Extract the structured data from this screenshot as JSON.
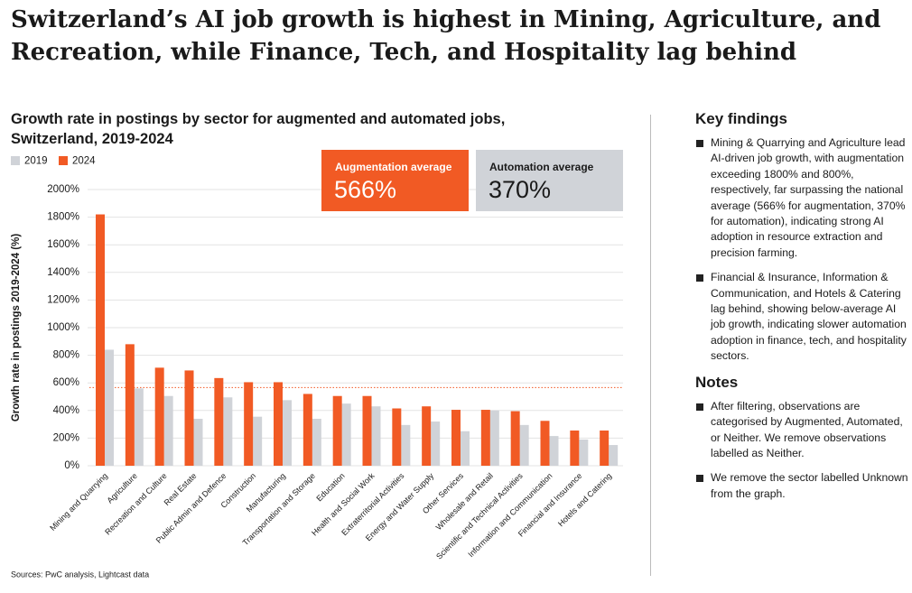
{
  "header": {
    "title": "Switzerland’s AI job growth is highest in Mining, Agriculture, and Recreation, while Finance, Tech, and Hospitality lag behind"
  },
  "chart_data": {
    "type": "bar",
    "title": "Growth rate in postings by sector for augmented and automated jobs, Switzerland, 2019-2024",
    "y_label": "Growth rate in postings 2019-2024 (%)",
    "categories": [
      "Mining and Quarrying",
      "Agriculture",
      "Recreation and Culture",
      "Real Estate",
      "Public Admin and Defence",
      "Construction",
      "Manufacturing",
      "Transportation and Storage",
      "Education",
      "Health and Social Work",
      "Extraterritorial Activities",
      "Energy and Water Supply",
      "Other Services",
      "Wholesale and Retail",
      "Scientific and Technical Activities",
      "Information and Communication",
      "Financial and Insurance",
      "Hotels and Catering"
    ],
    "series": [
      {
        "name": "2019",
        "color": "#d0d3d8",
        "values": [
          840,
          560,
          505,
          340,
          495,
          355,
          475,
          340,
          450,
          430,
          295,
          320,
          250,
          400,
          295,
          215,
          190,
          150
        ]
      },
      {
        "name": "2024",
        "color": "#f15a24",
        "values": [
          1820,
          880,
          710,
          690,
          635,
          605,
          605,
          520,
          505,
          505,
          415,
          430,
          405,
          405,
          395,
          325,
          255,
          255
        ]
      }
    ],
    "ylim": [
      0,
      2000
    ],
    "yticks": [
      {
        "value": 0,
        "label": "0%"
      },
      {
        "value": 200,
        "label": "200%"
      },
      {
        "value": 400,
        "label": "400%"
      },
      {
        "value": 600,
        "label": "600%"
      },
      {
        "value": 800,
        "label": "800%"
      },
      {
        "value": 1000,
        "label": "1000%"
      },
      {
        "value": 1200,
        "label": "1200%"
      },
      {
        "value": 1400,
        "label": "1400%"
      },
      {
        "value": 1600,
        "label": "1600%"
      },
      {
        "value": 1800,
        "label": "1800%"
      },
      {
        "value": 2000,
        "label": "2000%"
      }
    ],
    "grid": true,
    "averages": [
      {
        "label": "Augmentation average",
        "value": 566,
        "value_label": "566%",
        "color": "#f15a24",
        "text_color": "#ffffff",
        "reference_line": true
      },
      {
        "label": "Automation average",
        "value": 370,
        "value_label": "370%",
        "color": "#d0d3d8",
        "text_color": "#1a1a1a",
        "reference_line": false
      }
    ],
    "source": "Sources: PwC analysis, Lightcast data"
  },
  "panel": {
    "key_findings": {
      "heading": "Key findings",
      "items": [
        "Mining & Quarrying and Agriculture lead AI-driven job growth, with augmentation exceeding 1800% and 800%, respectively, far surpassing the national average (566% for augmentation, 370% for automation), indicating strong AI adoption in resource extraction and precision farming.",
        "Financial & Insurance, Information & Communication, and Hotels & Catering lag behind, showing below-average AI job growth, indicating slower automation adoption in finance, tech, and hospitality sectors."
      ]
    },
    "notes": {
      "heading": "Notes",
      "items": [
        "After filtering, observations are categorised by Augmented, Automated, or Neither. We remove observations labelled as Neither.",
        "We remove the sector labelled Unknown  from the graph."
      ]
    }
  }
}
